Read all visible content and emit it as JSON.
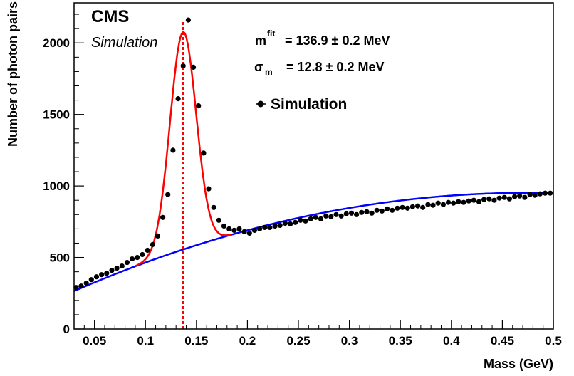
{
  "chart_data": {
    "type": "scatter",
    "title": "",
    "experiment_label": "CMS",
    "experiment_sublabel": "Simulation",
    "xlabel": "Mass (GeV)",
    "ylabel": "Number of photon pairs",
    "xlim": [
      0.03,
      0.5
    ],
    "ylim": [
      0,
      2280
    ],
    "x_ticks": [
      0.05,
      0.1,
      0.15,
      0.2,
      0.25,
      0.3,
      0.35,
      0.4,
      0.45,
      0.5
    ],
    "x_tick_labels": [
      "0.05",
      "0.1",
      "0.15",
      "0.2",
      "0.25",
      "0.3",
      "0.35",
      "0.4",
      "0.45",
      "0.5"
    ],
    "y_ticks": [
      0,
      500,
      1000,
      1500,
      2000
    ],
    "y_tick_labels": [
      "0",
      "500",
      "1000",
      "1500",
      "2000"
    ],
    "grid": false,
    "legend": {
      "position": "top-right",
      "entries": [
        "Simulation"
      ]
    },
    "annotations": {
      "mfit_symbol": "m",
      "mfit_superscript": "fit",
      "mfit_value": "= 136.9 ± 0.2 MeV",
      "sigma_symbol": "σ",
      "sigma_subscript": "m",
      "sigma_value": "= 12.8 ± 0.2 MeV"
    },
    "vertical_line": {
      "x": 0.1369,
      "style": "dashed",
      "color": "#ff0000"
    },
    "fit": {
      "signal_mean": 0.1369,
      "signal_sigma": 0.0128,
      "signal_amplitude": 1520,
      "background_model": "quadratic",
      "background_points": [
        [
          0.03,
          265
        ],
        [
          0.1,
          490
        ],
        [
          0.2,
          690
        ],
        [
          0.3,
          795
        ],
        [
          0.4,
          875
        ],
        [
          0.5,
          950
        ]
      ],
      "fit_color": "#ff0000",
      "background_color": "#0000ff"
    },
    "series": [
      {
        "name": "Simulation",
        "marker": "circle",
        "color": "#000000",
        "x": [
          0.032,
          0.037,
          0.042,
          0.047,
          0.052,
          0.057,
          0.062,
          0.067,
          0.072,
          0.077,
          0.082,
          0.087,
          0.092,
          0.097,
          0.102,
          0.107,
          0.112,
          0.117,
          0.122,
          0.127,
          0.132,
          0.137,
          0.142,
          0.147,
          0.152,
          0.157,
          0.162,
          0.167,
          0.172,
          0.177,
          0.182,
          0.187,
          0.192,
          0.197,
          0.202,
          0.207,
          0.212,
          0.217,
          0.222,
          0.227,
          0.232,
          0.237,
          0.242,
          0.247,
          0.252,
          0.257,
          0.262,
          0.267,
          0.272,
          0.277,
          0.282,
          0.287,
          0.292,
          0.297,
          0.302,
          0.307,
          0.312,
          0.317,
          0.322,
          0.327,
          0.332,
          0.337,
          0.342,
          0.347,
          0.352,
          0.357,
          0.362,
          0.367,
          0.372,
          0.377,
          0.382,
          0.387,
          0.392,
          0.397,
          0.402,
          0.407,
          0.412,
          0.417,
          0.422,
          0.427,
          0.432,
          0.437,
          0.442,
          0.447,
          0.452,
          0.457,
          0.462,
          0.467,
          0.472,
          0.477,
          0.482,
          0.487,
          0.492,
          0.497
        ],
        "y": [
          290,
          300,
          320,
          345,
          365,
          380,
          390,
          410,
          425,
          440,
          465,
          490,
          500,
          520,
          550,
          590,
          650,
          780,
          940,
          1250,
          1610,
          1840,
          2160,
          1830,
          1560,
          1230,
          980,
          850,
          760,
          720,
          700,
          690,
          700,
          680,
          670,
          690,
          700,
          710,
          710,
          720,
          725,
          740,
          735,
          745,
          760,
          755,
          770,
          780,
          770,
          790,
          785,
          800,
          790,
          805,
          810,
          800,
          815,
          820,
          810,
          830,
          825,
          840,
          830,
          845,
          850,
          845,
          855,
          860,
          850,
          870,
          865,
          880,
          870,
          885,
          880,
          890,
          885,
          895,
          900,
          890,
          905,
          910,
          900,
          915,
          920,
          910,
          925,
          930,
          920,
          940,
          935,
          945,
          950,
          950
        ]
      }
    ]
  }
}
